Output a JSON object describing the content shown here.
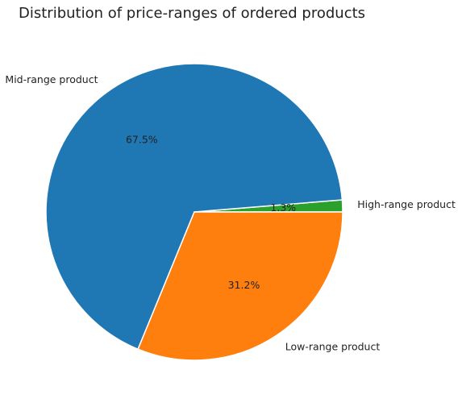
{
  "chart_data": {
    "type": "pie",
    "title": "Distribution of price-ranges of ordered products",
    "start_angle_deg": 0,
    "direction": "counterclockwise",
    "slices": [
      {
        "label": "High-range product",
        "value": 1.3,
        "pct_label": "1.3%",
        "color": "#2ca02c"
      },
      {
        "label": "Mid-range product",
        "value": 67.5,
        "pct_label": "67.5%",
        "color": "#1f77b4"
      },
      {
        "label": "Low-range product",
        "value": 31.2,
        "pct_label": "31.2%",
        "color": "#ff7f0e"
      }
    ]
  }
}
